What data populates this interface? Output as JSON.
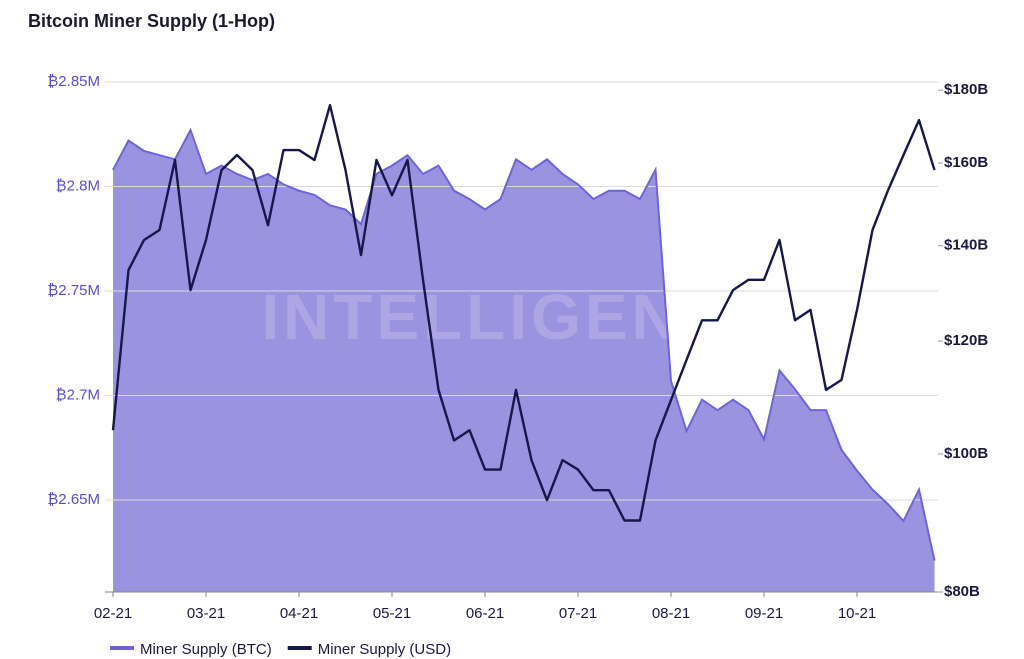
{
  "chart_data": {
    "type": "area-line",
    "title": "Bitcoin Miner Supply (1-Hop)",
    "watermark": "INTELLIGENCE",
    "categories": [
      "02-21",
      null,
      null,
      null,
      null,
      null,
      "03-21",
      null,
      null,
      null,
      null,
      null,
      "04-21",
      null,
      null,
      null,
      null,
      null,
      "05-21",
      null,
      null,
      null,
      null,
      null,
      "06-21",
      null,
      null,
      null,
      null,
      null,
      "07-21",
      null,
      null,
      null,
      null,
      null,
      "08-21",
      null,
      null,
      null,
      null,
      null,
      "09-21",
      null,
      null,
      null,
      null,
      null,
      "10-21",
      null,
      null,
      null,
      null,
      null
    ],
    "series": [
      {
        "name": "Miner Supply (BTC)",
        "color": "#6f63d9",
        "fill": "#9a93e0",
        "axis": "y",
        "values": [
          2.808,
          2.822,
          2.817,
          2.815,
          2.813,
          2.827,
          2.806,
          2.81,
          2.806,
          2.803,
          2.806,
          2.801,
          2.798,
          2.796,
          2.791,
          2.789,
          2.782,
          2.806,
          2.81,
          2.815,
          2.806,
          2.81,
          2.798,
          2.794,
          2.789,
          2.794,
          2.813,
          2.808,
          2.813,
          2.806,
          2.801,
          2.794,
          2.798,
          2.798,
          2.794,
          2.808,
          2.707,
          2.683,
          2.698,
          2.693,
          2.698,
          2.693,
          2.679,
          2.712,
          2.703,
          2.693,
          2.693,
          2.674,
          2.664,
          2.655,
          2.648,
          2.64,
          2.655,
          2.621
        ]
      },
      {
        "name": "Miner Supply (USD)",
        "color": "#16174a",
        "axis": "y2",
        "log": true,
        "values": [
          103.9,
          134.6,
          141.3,
          143.6,
          160.8,
          130.3,
          141.3,
          158.2,
          162.1,
          158.2,
          144.7,
          163.4,
          163.4,
          160.8,
          175.7,
          158.2,
          137.9,
          160.8,
          151.9,
          160.8,
          132.5,
          110.9,
          102.2,
          103.9,
          97.5,
          97.5,
          110.9,
          99.0,
          92.8,
          99.0,
          97.5,
          94.3,
          94.3,
          89.8,
          89.8,
          102.2,
          109.1,
          116.4,
          124.1,
          124.1,
          130.3,
          132.5,
          132.5,
          141.3,
          124.1,
          126.2,
          110.9,
          112.7,
          126.2,
          143.6,
          153.1,
          162.1,
          171.5,
          158.2
        ]
      }
    ],
    "ylim": [
      2.606,
      2.85
    ],
    "yticks": [
      {
        "value": 2.65,
        "label": "₿2.65M"
      },
      {
        "value": 2.7,
        "label": "₿2.7M"
      },
      {
        "value": 2.75,
        "label": "₿2.75M"
      },
      {
        "value": 2.8,
        "label": "₿2.8M"
      },
      {
        "value": 2.85,
        "label": "₿2.85M"
      }
    ],
    "y2lim": [
      80,
      182.4
    ],
    "y2ticks": [
      {
        "value": 80,
        "label": "$80B"
      },
      {
        "value": 100,
        "label": "$100B"
      },
      {
        "value": 120,
        "label": "$120B"
      },
      {
        "value": 140,
        "label": "$140B"
      },
      {
        "value": 160,
        "label": "$160B"
      },
      {
        "value": 180,
        "label": "$180B"
      }
    ],
    "y2log": true,
    "grid": true
  }
}
